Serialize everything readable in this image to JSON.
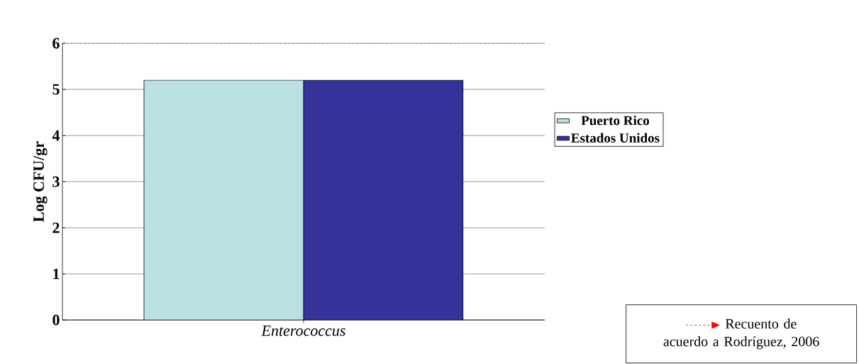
{
  "chart_data": {
    "type": "bar",
    "ylabel": "Log CFU/gr",
    "categories": [
      "Enterococcus"
    ],
    "series": [
      {
        "name": "Puerto Rico",
        "color": "#bbe0e3",
        "values": [
          5.2
        ]
      },
      {
        "name": "Estados Unidos",
        "color": "#333399",
        "values": [
          5.2
        ]
      }
    ],
    "ylim": [
      0,
      6
    ],
    "yticks": [
      0,
      1,
      2,
      3,
      4,
      5,
      6
    ],
    "grid": "y",
    "legend": "right",
    "ref_lines": [
      {
        "axis": "y",
        "value": 6,
        "label": "Recuento de acuerdo a Rodríguez, 2006",
        "color": "#ff0000",
        "line_style": "dashed"
      }
    ]
  }
}
